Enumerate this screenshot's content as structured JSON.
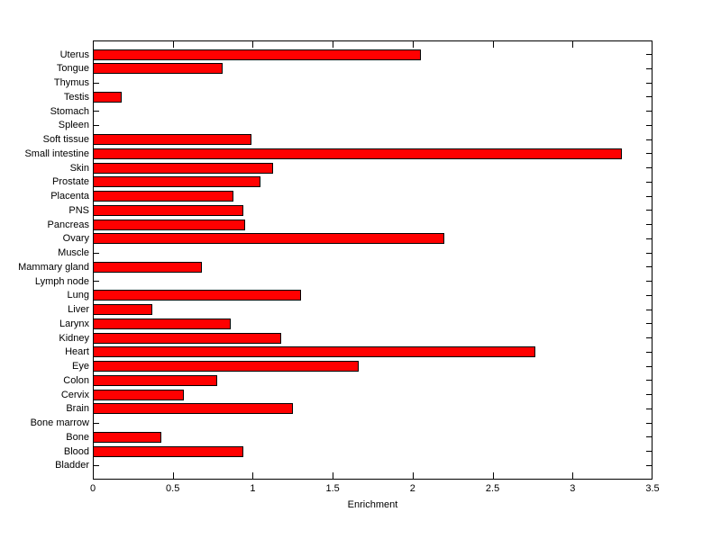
{
  "figure": {
    "background_color": "#ffffff",
    "axis_color": "#000000",
    "text_color": "#000000",
    "bar_fill_color": "#ff0000",
    "bar_edge_color": "#000000"
  },
  "chart_data": {
    "type": "bar",
    "orientation": "horizontal",
    "xlabel": "Enrichment",
    "ylabel": "",
    "xlim": [
      0,
      3.5
    ],
    "xticks": [
      0,
      0.5,
      1,
      1.5,
      2,
      2.5,
      3,
      3.5
    ],
    "xtick_labels": [
      "0",
      "0.5",
      "1",
      "1.5",
      "2",
      "2.5",
      "3",
      "3.5"
    ],
    "grid": false,
    "legend": null,
    "categories_top_to_bottom": [
      "Uterus",
      "Tongue",
      "Thymus",
      "Testis",
      "Stomach",
      "Spleen",
      "Soft tissue",
      "Small intestine",
      "Skin",
      "Prostate",
      "Placenta",
      "PNS",
      "Pancreas",
      "Ovary",
      "Muscle",
      "Mammary gland",
      "Lymph node",
      "Lung",
      "Liver",
      "Larynx",
      "Kidney",
      "Heart",
      "Eye",
      "Colon",
      "Cervix",
      "Brain",
      "Bone marrow",
      "Bone",
      "Blood",
      "Bladder"
    ],
    "values_top_to_bottom": [
      2.05,
      0.81,
      0,
      0.18,
      0,
      0,
      0.99,
      3.31,
      1.13,
      1.05,
      0.88,
      0.94,
      0.95,
      2.2,
      0,
      0.68,
      0,
      1.3,
      0.37,
      0.86,
      1.18,
      2.77,
      1.66,
      0.78,
      0.57,
      1.25,
      0,
      0.43,
      0.94,
      0
    ]
  }
}
